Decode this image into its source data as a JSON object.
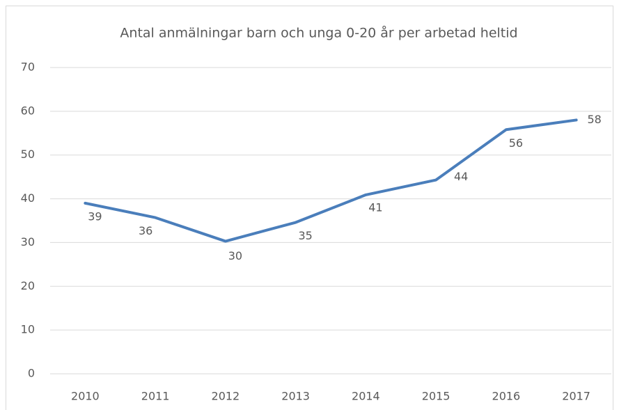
{
  "chart_data": {
    "type": "line",
    "title": "Antal anmälningar  barn och unga 0-20 år per arbetad heltid",
    "categories": [
      "2010",
      "2011",
      "2012",
      "2013",
      "2014",
      "2015",
      "2016",
      "2017"
    ],
    "series": [
      {
        "name": "Antal anmälningar",
        "color": "#4a7ebb",
        "values": [
          39,
          35.7,
          30.3,
          34.6,
          40.9,
          44.3,
          55.8,
          58
        ],
        "value_labels": [
          "39",
          "36",
          "30",
          "35",
          "41",
          "44",
          "56",
          "58"
        ]
      }
    ],
    "ylim": [
      0,
      70
    ],
    "yticks": [
      0,
      10,
      20,
      30,
      40,
      50,
      60,
      70
    ],
    "grid": true
  }
}
